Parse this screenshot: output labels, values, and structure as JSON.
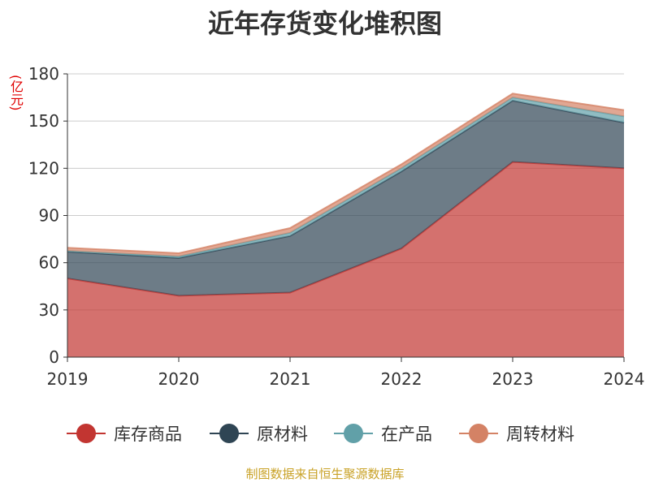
{
  "chart_data": {
    "type": "area",
    "stacked": true,
    "title": "近年存货变化堆积图",
    "unit_label": "(亿元)",
    "x": [
      "2019",
      "2020",
      "2021",
      "2022",
      "2023",
      "2024"
    ],
    "ylim": [
      0,
      180
    ],
    "yticks": [
      0,
      30,
      60,
      90,
      120,
      150,
      180
    ],
    "grid": true,
    "legend_position": "bottom",
    "series": [
      {
        "name": "库存商品",
        "color": "#c23531",
        "values": [
          50,
          39,
          41,
          69,
          124,
          120
        ]
      },
      {
        "name": "原材料",
        "color": "#2f4554",
        "values": [
          17,
          24,
          36,
          49,
          39,
          29
        ]
      },
      {
        "name": "在产品",
        "color": "#61a0a8",
        "values": [
          0.5,
          1,
          2,
          2,
          2,
          4
        ]
      },
      {
        "name": "周转材料",
        "color": "#d48265",
        "values": [
          2,
          2,
          3,
          2.5,
          2.5,
          4
        ]
      }
    ]
  },
  "footer": "制图数据来自恒生聚源数据库"
}
